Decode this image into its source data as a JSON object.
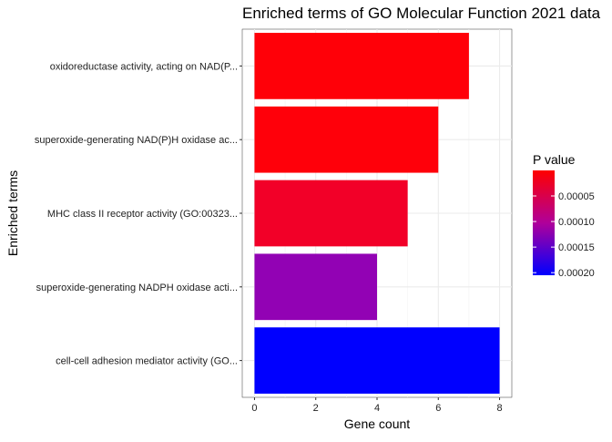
{
  "chart_data": {
    "type": "bar",
    "orientation": "horizontal",
    "title": "Enriched terms of GO Molecular Function 2021 data",
    "xlabel": "Gene count",
    "ylabel": "Enriched terms",
    "xlim": [
      -0.4,
      8.4
    ],
    "x_ticks": [
      0,
      2,
      4,
      6,
      8
    ],
    "categories": [
      "oxidoreductase activity, acting on NAD(P...",
      "superoxide-generating NAD(P)H oxidase ac...",
      "MHC class II receptor activity (GO:00323...",
      "superoxide-generating NADPH oxidase acti...",
      "cell-cell adhesion mediator activity (GO..."
    ],
    "values": [
      7,
      6,
      5,
      4,
      8
    ],
    "p_values": [
      1e-07,
      2e-07,
      1.8e-05,
      0.000145,
      0.000205
    ],
    "bar_colors": [
      "#FF0008",
      "#FF000A",
      "#F20028",
      "#9202B4",
      "#0000FF"
    ],
    "legend": {
      "title": "P value",
      "placement": "right",
      "ticks": [
        "0.00005",
        "0.00010",
        "0.00015",
        "0.00020"
      ],
      "tick_values": [
        5e-05,
        0.0001,
        0.00015,
        0.0002
      ],
      "range": [
        1e-07,
        0.000205
      ],
      "low_color": "#FF0000",
      "high_color": "#0000FF"
    },
    "grid": true,
    "panel_background": "#ffffff",
    "grid_color": "#EBEBEB"
  }
}
